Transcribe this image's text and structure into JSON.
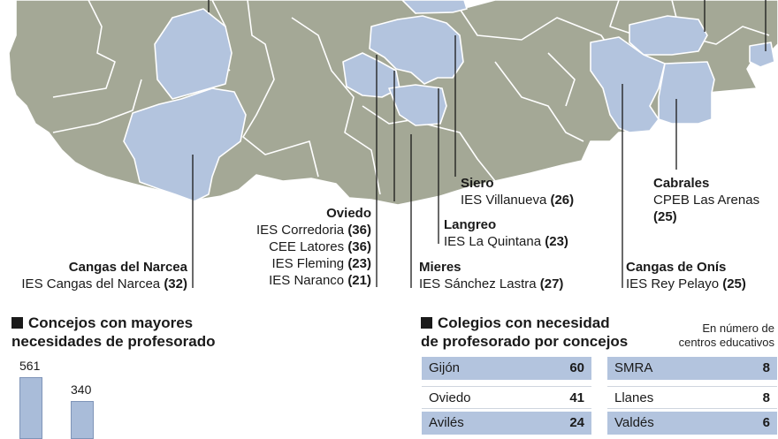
{
  "colors": {
    "grey_region": "#a4a896",
    "blue_region": "#b3c4de",
    "border": "#ffffff"
  },
  "callouts": [
    {
      "name": "Siero",
      "lines": [
        {
          "text": "IES Villanueva ",
          "count": "(26)"
        }
      ]
    },
    {
      "name": "Cabrales",
      "lines": [
        {
          "text": "CPEB Las Arenas",
          "count": ""
        },
        {
          "text": "",
          "count": "(25)"
        }
      ]
    },
    {
      "name": "Oviedo",
      "lines": [
        {
          "text": "IES Corredoria ",
          "count": "(36)"
        },
        {
          "text": "CEE Latores ",
          "count": "(36)"
        },
        {
          "text": "IES Fleming ",
          "count": "(23)"
        },
        {
          "text": "IES Naranco ",
          "count": "(21)"
        }
      ]
    },
    {
      "name": "Langreo",
      "lines": [
        {
          "text": "IES La Quintana ",
          "count": "(23)"
        }
      ]
    },
    {
      "name": "Cangas del Narcea",
      "lines": [
        {
          "text": "IES Cangas del Narcea ",
          "count": "(32)"
        }
      ]
    },
    {
      "name": "Mieres",
      "lines": [
        {
          "text": "IES Sánchez Lastra ",
          "count": "(27)"
        }
      ]
    },
    {
      "name": "Cangas de Onís",
      "lines": [
        {
          "text": "IES Rey Pelayo ",
          "count": "(25)"
        }
      ]
    }
  ],
  "left_section": {
    "title_line1": "Concejos con mayores",
    "title_line2": "necesidades de profesorado"
  },
  "right_section": {
    "title_line1": "Colegios con necesidad",
    "title_line2": "de profesorado por concejos",
    "note_line1": "En número de",
    "note_line2": "centros educativos"
  },
  "chart_data": [
    {
      "type": "bar",
      "title": "Concejos con mayores necesidades de profesorado",
      "values": [
        561,
        340
      ],
      "labels": [
        "561",
        "340"
      ],
      "ylim": [
        0,
        561
      ]
    },
    {
      "type": "table",
      "title": "Colegios con necesidad de profesorado por concejos",
      "note": "En número de centros educativos",
      "left_column": [
        {
          "name": "Gijón",
          "value": "60"
        },
        {
          "name": "Oviedo",
          "value": "41"
        },
        {
          "name": "Avilés",
          "value": "24"
        }
      ],
      "right_column": [
        {
          "name": "SMRA",
          "value": "8"
        },
        {
          "name": "Llanes",
          "value": "8"
        },
        {
          "name": "Valdés",
          "value": "6"
        }
      ]
    }
  ]
}
